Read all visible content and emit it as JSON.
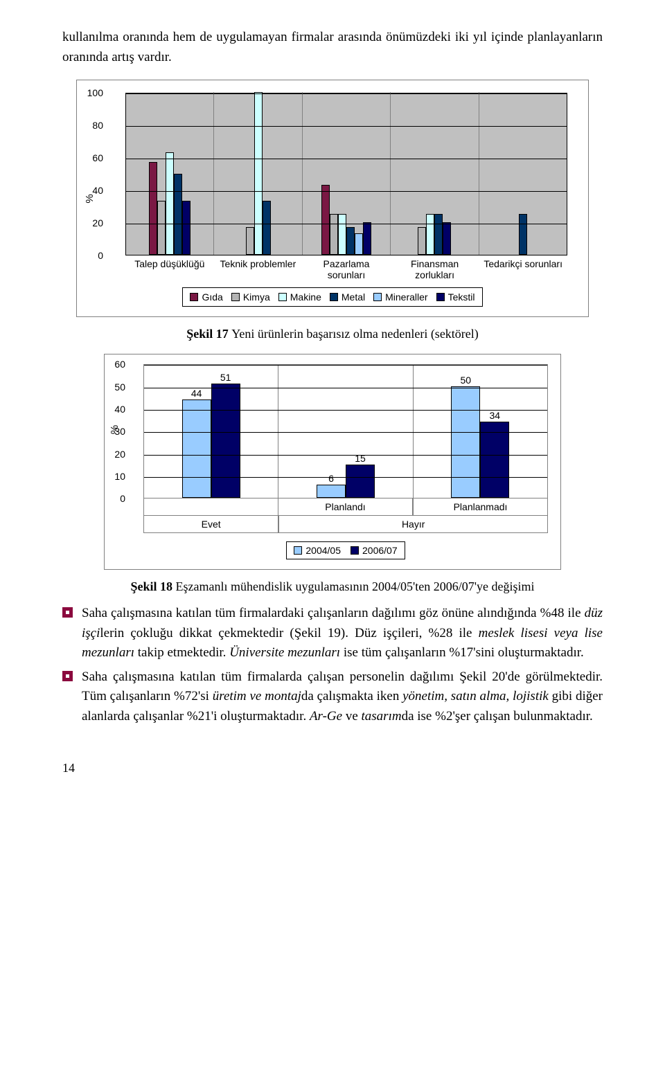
{
  "intro": "kullanılma oranında hem de uygulamayan firmalar arasında önümüzdeki iki yıl içinde planlayanların oranında artış vardır.",
  "chart1": {
    "type": "grouped-bar",
    "ylabel": "%",
    "ylim": [
      0,
      100
    ],
    "ytick_step": 20,
    "background_color": "#c0c0c0",
    "grid_color": "#000000",
    "categories": [
      "Talep düşüklüğü",
      "Teknik problemler",
      "Pazarlama sorunları",
      "Finansman zorlukları",
      "Tedarikçi sorunları"
    ],
    "series": [
      {
        "name": "Gıda",
        "color": "#7a1844",
        "values": [
          57,
          0,
          43,
          0,
          0
        ]
      },
      {
        "name": "Kimya",
        "color": "#b3b3b3",
        "values": [
          33,
          17,
          25,
          17,
          0
        ]
      },
      {
        "name": "Makine",
        "color": "#ccffff",
        "values": [
          63,
          100,
          25,
          25,
          0
        ]
      },
      {
        "name": "Metal",
        "color": "#003366",
        "values": [
          50,
          33,
          17,
          25,
          25
        ]
      },
      {
        "name": "Mineraller",
        "color": "#99ccff",
        "values": [
          0,
          0,
          13,
          0,
          0
        ]
      },
      {
        "name": "Tekstil",
        "color": "#000066",
        "values": [
          33,
          0,
          20,
          20,
          0
        ]
      }
    ]
  },
  "caption1_bold": "Şekil 17 ",
  "caption1_text": "Yeni ürünlerin başarısız olma nedenleri  (sektörel)",
  "chart2": {
    "type": "grouped-bar",
    "ylabel": "%",
    "ylim": [
      0,
      60
    ],
    "ytick_step": 10,
    "grid_color": "#000000",
    "top_headers": [
      "",
      "Planlandı",
      "Planlanmadı"
    ],
    "bottom_headers": [
      "Evet",
      "Hayır"
    ],
    "series": [
      {
        "name": "2004/05",
        "color": "#99ccff",
        "values": [
          44,
          6,
          50
        ]
      },
      {
        "name": "2006/07",
        "color": "#000066",
        "values": [
          51,
          15,
          34
        ]
      }
    ]
  },
  "caption2_bold": "Şekil 18 ",
  "caption2_text": "Eşzamanlı mühendislik uygulamasının 2004/05'ten 2006/07'ye değişimi",
  "bullets": [
    {
      "html": "Saha çalışmasına katılan tüm firmalardaki çalışanların dağılımı göz önüne alındığında %48 ile <em>düz işçi</em>lerin çokluğu dikkat çekmektedir (Şekil 19). Düz işçileri, %28 ile <em>meslek lisesi veya lise mezunları</em> takip etmektedir. <em>Üniversite mezunları</em> ise tüm çalışanların %17'sini oluşturmaktadır."
    },
    {
      "html": "Saha çalışmasına katılan tüm firmalarda çalışan personelin dağılımı Şekil 20'de görülmektedir. Tüm çalışanların %72'si <em>üretim ve montaj</em>da çalışmakta iken <em>yönetim, satın alma, lojistik</em> gibi diğer alanlarda çalışanlar %21'i oluşturmaktadır. <em>Ar-Ge</em> ve <em>tasarım</em>da ise %2'şer çalışan bulunmaktadır."
    }
  ],
  "page_number": "14"
}
